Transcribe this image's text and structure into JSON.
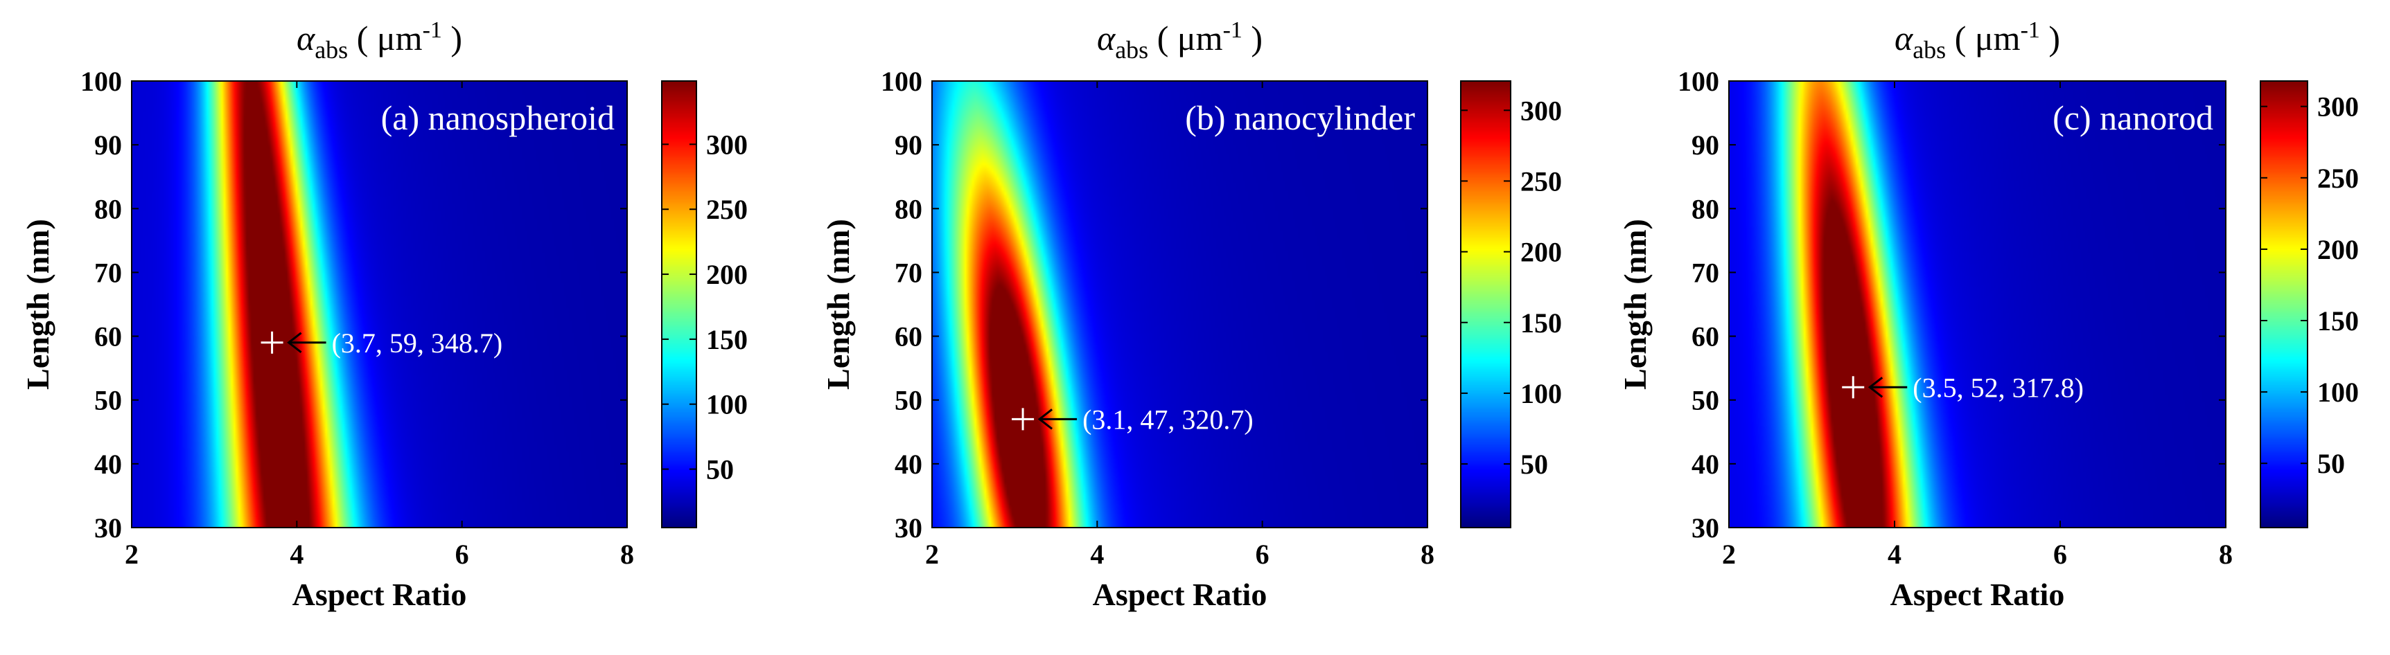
{
  "figure": {
    "title_symbol": "α",
    "title_sub": "abs",
    "title_unit_open": "( μm",
    "title_unit_exp": "-1",
    "title_unit_close": " )"
  },
  "chart_data": [
    {
      "type": "heatmap",
      "label": "(a) nanospheroid",
      "xlabel": "Aspect Ratio",
      "ylabel": "Length (nm)",
      "xlim": [
        2,
        8
      ],
      "ylim": [
        30,
        100
      ],
      "xticks": [
        2,
        4,
        6,
        8
      ],
      "yticks": [
        30,
        40,
        50,
        60,
        70,
        80,
        90,
        100
      ],
      "colorbar": {
        "min": 5,
        "max": 348.7,
        "ticks": [
          50,
          100,
          150,
          200,
          250,
          300
        ]
      },
      "peak": {
        "x": 3.7,
        "y": 59,
        "value": 348.7,
        "label": "(3.7, 59, 348.7)"
      },
      "ridge": {
        "center_at_30": 3.9,
        "center_at_100": 3.45,
        "width_at_30": 0.5,
        "width_at_100": 0.35,
        "length_decay": 110
      }
    },
    {
      "type": "heatmap",
      "label": "(b) nanocylinder",
      "xlabel": "Aspect Ratio",
      "ylabel": "Length (nm)",
      "xlim": [
        2,
        8
      ],
      "ylim": [
        30,
        100
      ],
      "xticks": [
        2,
        4,
        6,
        8
      ],
      "yticks": [
        30,
        40,
        50,
        60,
        70,
        80,
        90,
        100
      ],
      "colorbar": {
        "min": 5,
        "max": 320.7,
        "ticks": [
          50,
          100,
          150,
          200,
          250,
          300
        ]
      },
      "peak": {
        "x": 3.1,
        "y": 47,
        "value": 320.7,
        "label": "(3.1, 47, 320.7)"
      },
      "ridge": {
        "center_at_30": 3.2,
        "center_at_100": 2.5,
        "width_at_30": 0.42,
        "width_at_100": 0.38,
        "length_decay": 45
      }
    },
    {
      "type": "heatmap",
      "label": "(c) nanorod",
      "xlabel": "Aspect Ratio",
      "ylabel": "Length (nm)",
      "xlim": [
        2,
        8
      ],
      "ylim": [
        30,
        100
      ],
      "xticks": [
        2,
        4,
        6,
        8
      ],
      "yticks": [
        30,
        40,
        50,
        60,
        70,
        80,
        90,
        100
      ],
      "colorbar": {
        "min": 5,
        "max": 317.8,
        "ticks": [
          50,
          100,
          150,
          200,
          250,
          300
        ]
      },
      "peak": {
        "x": 3.5,
        "y": 52,
        "value": 317.8,
        "label": "(3.5, 52, 317.8)"
      },
      "ridge": {
        "center_at_30": 3.65,
        "center_at_100": 3.1,
        "width_at_30": 0.45,
        "width_at_100": 0.36,
        "length_decay": 65
      }
    }
  ]
}
